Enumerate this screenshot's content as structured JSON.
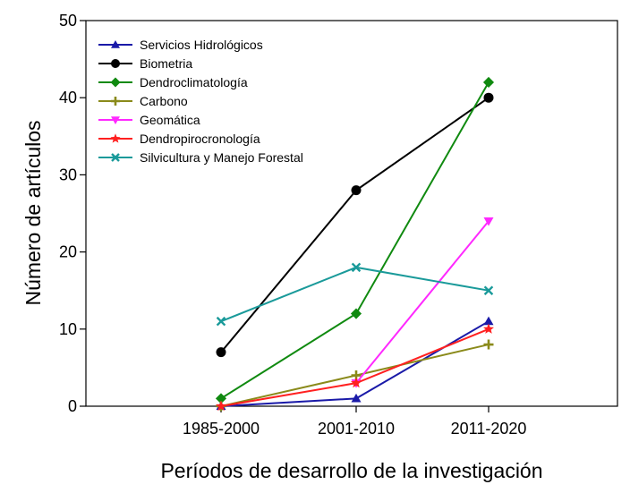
{
  "chart_data": {
    "type": "line",
    "title": "",
    "xlabel": "Períodos de desarrollo de la investigación",
    "ylabel": "Número de artículos",
    "categories": [
      "1985-2000",
      "2001-2010",
      "2011-2020"
    ],
    "ylim": [
      0,
      50
    ],
    "yticks": [
      "0",
      "10",
      "20",
      "30",
      "40",
      "50"
    ],
    "grid": false,
    "legend_position": "top-left",
    "series": [
      {
        "name": "Servicios Hidrológicos",
        "values": [
          0,
          1,
          11
        ],
        "color": "#1a1aa8",
        "marker": "triangle-up"
      },
      {
        "name": "Biometria",
        "values": [
          7,
          28,
          40
        ],
        "color": "#000000",
        "marker": "circle"
      },
      {
        "name": "Dendroclimatología",
        "values": [
          1,
          12,
          42
        ],
        "color": "#108a10",
        "marker": "diamond"
      },
      {
        "name": "Carbono",
        "values": [
          0,
          4,
          8
        ],
        "color": "#8a8a1a",
        "marker": "cross"
      },
      {
        "name": "Geomática",
        "values": [
          null,
          3,
          24
        ],
        "color": "#ff28ff",
        "marker": "triangle-down"
      },
      {
        "name": "Dendropirocronología",
        "values": [
          0,
          3,
          10
        ],
        "color": "#ff2020",
        "marker": "star"
      },
      {
        "name": "Silvicultura y Manejo Forestal",
        "values": [
          11,
          18,
          15
        ],
        "color": "#1a9a9a",
        "marker": "x"
      }
    ]
  }
}
